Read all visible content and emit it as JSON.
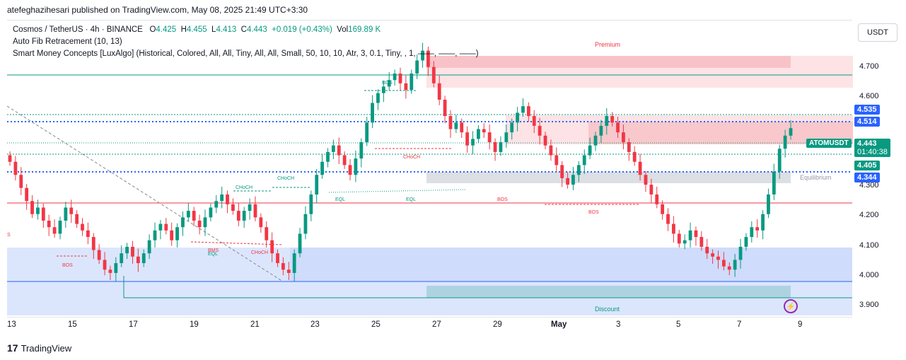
{
  "header": {
    "published": "atefeghazihesari published on TradingView.com, May 08, 2025 21:49 UTC+3:30"
  },
  "legend": {
    "symbol": "Cosmos / TetherUS · 4h · BINANCE",
    "o_label": "O",
    "o": "4.425",
    "h_label": "H",
    "h": "4.455",
    "l_label": "L",
    "l": "4.413",
    "c_label": "C",
    "c": "4.443",
    "change": "+0.019 (+0.43%)",
    "vol_label": "Vol",
    "vol": "169.89 K",
    "indicator1": "Auto Fib Retracement (10, 13)",
    "indicator2": "Smart Money Concepts [LuxAlgo] (Historical, Colored, All, All, Tiny, All, All, Small, 50, 10, 10, Atr, 3, 0.1, Tiny, , 1, ——, ——, ——)"
  },
  "currency_button": "USDT",
  "price_axis": [
    "4.700",
    "4.600",
    "4.300",
    "4.200",
    "4.100",
    "4.000",
    "3.900"
  ],
  "price_tags": {
    "p4535": "4.535",
    "p4514": "4.514",
    "p4405": "4.405",
    "p4344": "4.344",
    "symbol_tag": "ATOMUSDT",
    "last_price": "4.443",
    "countdown": "01:40:38"
  },
  "time_axis": [
    "13",
    "15",
    "17",
    "19",
    "21",
    "23",
    "25",
    "27",
    "29",
    "May",
    "3",
    "5",
    "7",
    "9"
  ],
  "zones": {
    "premium": "Premium",
    "equilibrium": "Equilibrium",
    "discount": "Discount"
  },
  "annotations": {
    "bos": "BOS",
    "choch": "CHoCH",
    "eql": "EQL",
    "bms": "BMS",
    "s": "S"
  },
  "footer": {
    "brand": "TradingView"
  },
  "colors": {
    "up": "#089981",
    "down": "#f23645",
    "blue_line": "#2962ff",
    "premium_zone": "#f7c4c8",
    "discount_zone": "#c6d7f9"
  },
  "chart_data": {
    "type": "candlestick",
    "symbol": "Cosmos / TetherUS",
    "interval": "4h",
    "ylim": [
      3.87,
      4.77
    ],
    "close": [
      4.34,
      4.3,
      4.26,
      4.22,
      4.18,
      4.2,
      4.16,
      4.14,
      4.12,
      4.16,
      4.2,
      4.18,
      4.15,
      4.13,
      4.11,
      4.07,
      4.04,
      4.01,
      4.0,
      4.03,
      4.06,
      4.08,
      4.05,
      4.03,
      4.06,
      4.1,
      4.13,
      4.15,
      4.13,
      4.1,
      4.14,
      4.17,
      4.19,
      4.16,
      4.14,
      4.17,
      4.2,
      4.22,
      4.24,
      4.21,
      4.19,
      4.16,
      4.19,
      4.21,
      4.17,
      4.14,
      4.1,
      4.06,
      4.03,
      4.01,
      4.0,
      4.06,
      4.12,
      4.18,
      4.24,
      4.3,
      4.34,
      4.37,
      4.39,
      4.36,
      4.33,
      4.3,
      4.35,
      4.4,
      4.46,
      4.52,
      4.55,
      4.57,
      4.59,
      4.61,
      4.58,
      4.56,
      4.61,
      4.65,
      4.68,
      4.63,
      4.58,
      4.53,
      4.48,
      4.44,
      4.46,
      4.43,
      4.39,
      4.41,
      4.44,
      4.43,
      4.4,
      4.37,
      4.4,
      4.43,
      4.46,
      4.49,
      4.51,
      4.48,
      4.45,
      4.42,
      4.39,
      4.36,
      4.33,
      4.29,
      4.27,
      4.3,
      4.33,
      4.36,
      4.39,
      4.42,
      4.45,
      4.48,
      4.46,
      4.43,
      4.4,
      4.37,
      4.34,
      4.3,
      4.27,
      4.24,
      4.21,
      4.18,
      4.15,
      4.12,
      4.09,
      4.1,
      4.13,
      4.11,
      4.08,
      4.06,
      4.05,
      4.04,
      4.02,
      4.01,
      4.04,
      4.08,
      4.11,
      4.14,
      4.13,
      4.18,
      4.24,
      4.31,
      4.38,
      4.42,
      4.443
    ]
  }
}
